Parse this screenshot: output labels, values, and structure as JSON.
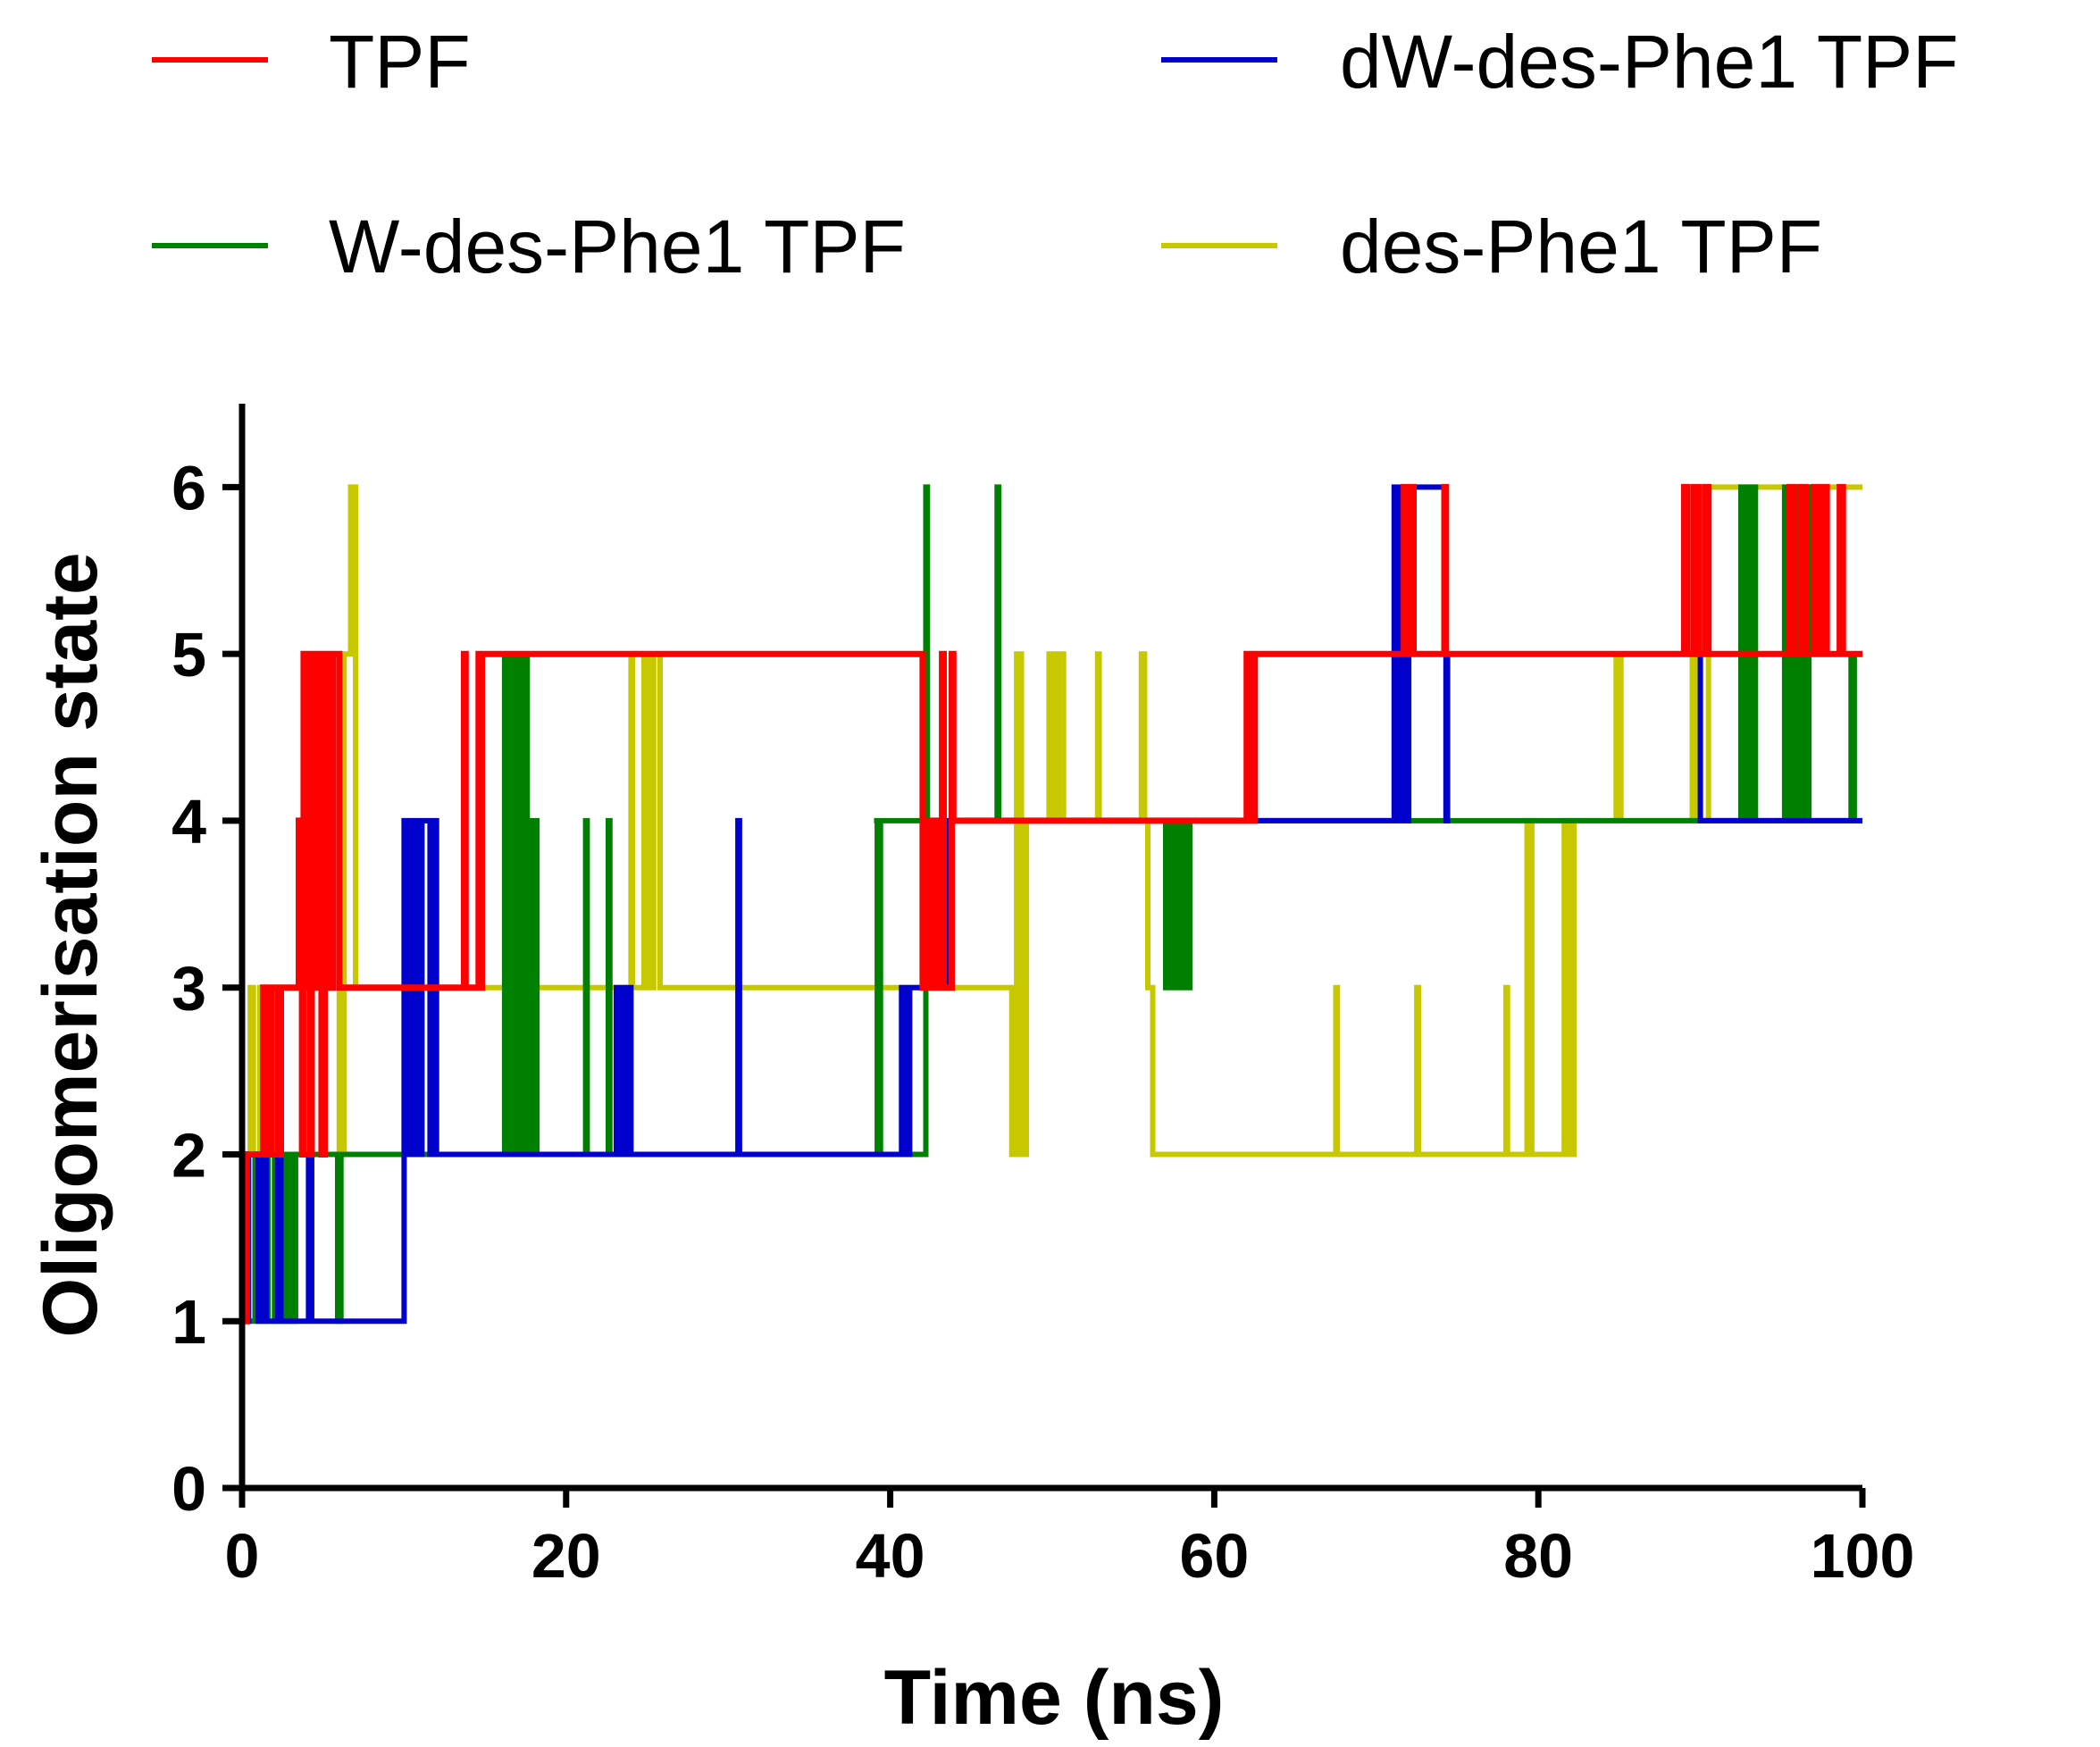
{
  "chart_data": {
    "type": "line",
    "step": true,
    "xlabel": "Time (ns)",
    "ylabel": "Oligomerisation state",
    "xlim": [
      0,
      100
    ],
    "ylim": [
      0,
      6.5
    ],
    "xticks": [
      "0",
      "20",
      "40",
      "60",
      "80",
      "100"
    ],
    "yticks": [
      "0",
      "1",
      "2",
      "3",
      "4",
      "5",
      "6"
    ],
    "grid": false,
    "legend_position": "top",
    "series": [
      {
        "name": "TPF",
        "color": "#ff0000",
        "x": [
          0,
          0.3,
          1.3,
          1.6,
          1.8,
          2.2,
          2.4,
          3.5,
          3.7,
          3.8,
          3.9,
          4.1,
          4.2,
          4.3,
          4.5,
          4.7,
          4.9,
          5.1,
          5.4,
          5.6,
          6.0,
          13.7,
          13.8,
          14.6,
          14.7,
          14.8,
          42.0,
          42.2,
          42.5,
          42.8,
          43.0,
          43.2,
          43.3,
          43.8,
          43.9,
          62.0,
          62.3,
          62.5,
          71.7,
          71.8,
          72.1,
          72.3,
          74.2,
          74.3,
          89.0,
          89.2,
          89.6,
          89.9,
          90.3,
          90.5,
          95.5,
          95.8,
          96.2,
          96.5,
          97.0,
          97.3,
          97.6,
          97.8,
          98.6,
          98.8,
          100
        ],
        "y": [
          1,
          2,
          3,
          2,
          3,
          2,
          3,
          4,
          2,
          5,
          3,
          5,
          2,
          5,
          3,
          5,
          2,
          5,
          3,
          5,
          3,
          5,
          3,
          5,
          3,
          5,
          3,
          4,
          3,
          4,
          3,
          5,
          3,
          5,
          4,
          5,
          4,
          5,
          6,
          5,
          6,
          5,
          6,
          5,
          6,
          5,
          6,
          5,
          6,
          5,
          6,
          5,
          6,
          5,
          6,
          5,
          6,
          5,
          6,
          5,
          5
        ]
      },
      {
        "name": "dW-des-Phe1 TPF",
        "color": "#0000cc",
        "x": [
          0,
          0.4,
          1.0,
          1.2,
          1.5,
          2.2,
          2.4,
          4.1,
          4.3,
          10.0,
          10.3,
          10.6,
          10.9,
          11.1,
          11.6,
          11.9,
          12.0,
          23.1,
          23.4,
          23.7,
          24.0,
          30.6,
          30.7,
          40.7,
          40.9,
          41.2,
          43.6,
          43.8,
          71.1,
          71.3,
          71.6,
          71.8,
          72.0,
          74.3,
          74.4,
          90.0,
          92.0,
          92.5,
          100
        ],
        "y": [
          1,
          2,
          1,
          2,
          1,
          2,
          1,
          2,
          1,
          4,
          2,
          4,
          2,
          4,
          2,
          4,
          2,
          3,
          2,
          3,
          2,
          4,
          2,
          3,
          2,
          3,
          4,
          4,
          6,
          4,
          6,
          4,
          6,
          4,
          5,
          4,
          4,
          4,
          4
        ]
      },
      {
        "name": "W-des-Phe1 TPF",
        "color": "#008000",
        "x": [
          0,
          0.8,
          1.0,
          1.6,
          2.0,
          2.7,
          3.0,
          3.3,
          3.6,
          5.9,
          6.1,
          6.4,
          16.2,
          16.5,
          16.8,
          17.1,
          17.4,
          17.6,
          17.9,
          18.2,
          21.2,
          21.3,
          22.6,
          22.7,
          42.2,
          42.3,
          46.6,
          46.7,
          39.0,
          39.2,
          39.4,
          57.0,
          57.3,
          57.6,
          57.9,
          58.2,
          58.5,
          92.5,
          92.8,
          93.1,
          93.4,
          95.2,
          95.5,
          95.8,
          96.1,
          96.4,
          96.7,
          99.3,
          99.5,
          100
        ],
        "y": [
          1,
          2,
          1,
          2,
          1,
          2,
          1,
          2,
          2,
          1,
          2,
          2,
          5,
          2,
          5,
          2,
          5,
          2,
          4,
          2,
          4,
          2,
          4,
          2,
          6,
          4,
          6,
          4,
          4,
          2,
          4,
          3,
          4,
          3,
          4,
          3,
          4,
          6,
          4,
          6,
          4,
          6,
          4,
          6,
          4,
          6,
          4,
          5,
          4,
          4
        ]
      },
      {
        "name": "des-Phe1 TPF",
        "color": "#c8c800",
        "x": [
          0,
          0.5,
          0.7,
          1.1,
          5.0,
          5.3,
          5.6,
          6.0,
          6.3,
          6.7,
          7.0,
          7.3,
          24.0,
          24.1,
          24.8,
          25.1,
          25.4,
          25.8,
          26.1,
          47.5,
          47.8,
          48.1,
          48.4,
          49.8,
          50.1,
          50.4,
          50.7,
          52.8,
          52.9,
          55.5,
          55.7,
          55.9,
          56.2,
          67.5,
          67.6,
          72.5,
          72.6,
          78.0,
          78.1,
          79.3,
          79.6,
          81.6,
          81.9,
          82.2,
          84.8,
          85.1,
          89.5,
          89.7,
          90.5,
          90.8,
          100
        ],
        "y": [
          2,
          3,
          2,
          3,
          5,
          3,
          5,
          2,
          5,
          6,
          3,
          3,
          5,
          3,
          5,
          3,
          5,
          3,
          3,
          2,
          5,
          2,
          4,
          5,
          4,
          5,
          4,
          5,
          4,
          5,
          4,
          3,
          2,
          3,
          2,
          3,
          2,
          3,
          2,
          4,
          2,
          4,
          2,
          4,
          5,
          4,
          5,
          4,
          6,
          6,
          6
        ]
      }
    ]
  }
}
